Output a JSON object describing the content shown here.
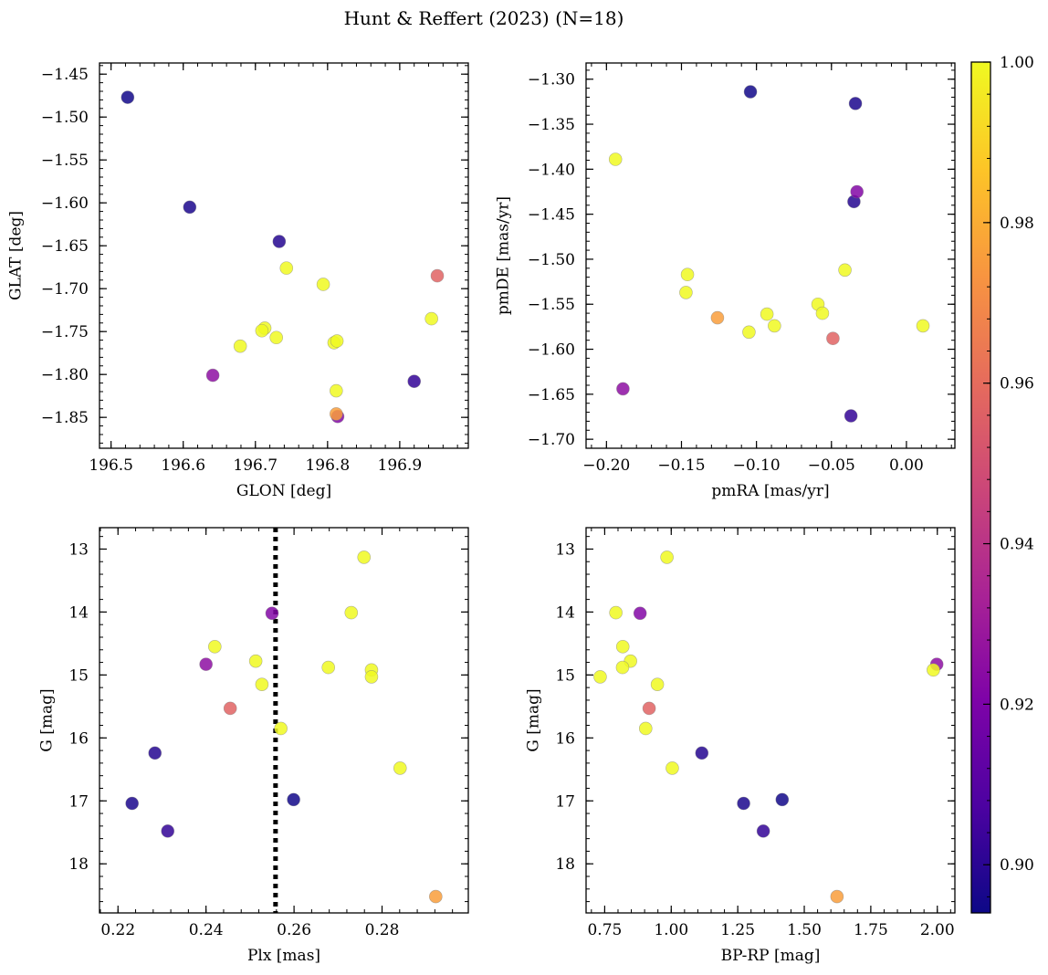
{
  "figure": {
    "title": "Hunt & Reffert (2023) (N=18)"
  },
  "colorbar": {
    "colormap": "plasma",
    "range": [
      0.894,
      1.0
    ],
    "ticks": [
      0.9,
      0.92,
      0.94,
      0.96,
      0.98,
      1.0
    ],
    "tick_labels": [
      "0.90",
      "0.92",
      "0.94",
      "0.96",
      "0.98",
      "1.00"
    ]
  },
  "chart_data": [
    {
      "type": "scatter",
      "xlabel": "GLON [deg]",
      "ylabel": "GLAT [deg]",
      "xlim": [
        196.484,
        196.995
      ],
      "ylim": [
        -1.886,
        -1.437
      ],
      "x_ticks": [
        196.5,
        196.6,
        196.7,
        196.8,
        196.9
      ],
      "x_tick_labels": [
        "196.5",
        "196.6",
        "196.7",
        "196.8",
        "196.9"
      ],
      "y_ticks": [
        -1.85,
        -1.8,
        -1.75,
        -1.7,
        -1.65,
        -1.6,
        -1.55,
        -1.5,
        -1.45
      ],
      "y_tick_labels": [
        "−1.85",
        "−1.80",
        "−1.75",
        "−1.70",
        "−1.65",
        "−1.60",
        "−1.55",
        "−1.50",
        "−1.45"
      ],
      "invert_y": false,
      "points": [
        {
          "x": 196.523,
          "y": -1.477,
          "c": 0.895
        },
        {
          "x": 196.609,
          "y": -1.605,
          "c": 0.897
        },
        {
          "x": 196.733,
          "y": -1.645,
          "c": 0.899
        },
        {
          "x": 196.743,
          "y": -1.676,
          "c": 1.0
        },
        {
          "x": 196.794,
          "y": -1.695,
          "c": 1.0
        },
        {
          "x": 196.952,
          "y": -1.685,
          "c": 0.957
        },
        {
          "x": 196.944,
          "y": -1.735,
          "c": 1.0
        },
        {
          "x": 196.713,
          "y": -1.746,
          "c": 1.0
        },
        {
          "x": 196.709,
          "y": -1.749,
          "c": 1.0
        },
        {
          "x": 196.729,
          "y": -1.757,
          "c": 1.0
        },
        {
          "x": 196.679,
          "y": -1.767,
          "c": 1.0
        },
        {
          "x": 196.809,
          "y": -1.763,
          "c": 1.0
        },
        {
          "x": 196.813,
          "y": -1.761,
          "c": 1.0
        },
        {
          "x": 196.641,
          "y": -1.801,
          "c": 0.925
        },
        {
          "x": 196.92,
          "y": -1.808,
          "c": 0.902
        },
        {
          "x": 196.812,
          "y": -1.819,
          "c": 1.0
        },
        {
          "x": 196.814,
          "y": -1.849,
          "c": 0.922
        },
        {
          "x": 196.812,
          "y": -1.846,
          "c": 0.976
        }
      ]
    },
    {
      "type": "scatter",
      "xlabel": "pmRA [mas/yr]",
      "ylabel": "pmDE [mas/yr]",
      "xlim": [
        -0.2136,
        0.0323
      ],
      "ylim": [
        -1.71,
        -1.282
      ],
      "x_ticks": [
        -0.2,
        -0.15,
        -0.1,
        -0.05,
        0.0
      ],
      "x_tick_labels": [
        "−0.20",
        "−0.15",
        "−0.10",
        "−0.05",
        "0.00"
      ],
      "y_ticks": [
        -1.7,
        -1.65,
        -1.6,
        -1.55,
        -1.5,
        -1.45,
        -1.4,
        -1.35,
        -1.3
      ],
      "y_tick_labels": [
        "−1.70",
        "−1.65",
        "−1.60",
        "−1.55",
        "−1.50",
        "−1.45",
        "−1.40",
        "−1.35",
        "−1.30"
      ],
      "invert_y": false,
      "points": [
        {
          "x": -0.104,
          "y": -1.314,
          "c": 0.895
        },
        {
          "x": -0.034,
          "y": -1.327,
          "c": 0.897
        },
        {
          "x": -0.194,
          "y": -1.389,
          "c": 1.0
        },
        {
          "x": -0.033,
          "y": -1.425,
          "c": 0.922
        },
        {
          "x": -0.035,
          "y": -1.436,
          "c": 0.899
        },
        {
          "x": -0.146,
          "y": -1.517,
          "c": 1.0
        },
        {
          "x": -0.147,
          "y": -1.537,
          "c": 1.0
        },
        {
          "x": -0.041,
          "y": -1.512,
          "c": 1.0
        },
        {
          "x": -0.059,
          "y": -1.55,
          "c": 1.0
        },
        {
          "x": -0.056,
          "y": -1.56,
          "c": 1.0
        },
        {
          "x": -0.093,
          "y": -1.561,
          "c": 1.0
        },
        {
          "x": -0.088,
          "y": -1.574,
          "c": 1.0
        },
        {
          "x": -0.126,
          "y": -1.565,
          "c": 0.976
        },
        {
          "x": -0.105,
          "y": -1.581,
          "c": 1.0
        },
        {
          "x": 0.011,
          "y": -1.574,
          "c": 1.0
        },
        {
          "x": -0.049,
          "y": -1.588,
          "c": 0.957
        },
        {
          "x": -0.189,
          "y": -1.644,
          "c": 0.925
        },
        {
          "x": -0.037,
          "y": -1.674,
          "c": 0.902
        }
      ]
    },
    {
      "type": "scatter",
      "xlabel": "Plx [mas]",
      "ylabel": "G [mag]",
      "xlim": [
        0.2158,
        0.2996
      ],
      "ylim": [
        18.78,
        12.66
      ],
      "x_ticks": [
        0.22,
        0.24,
        0.26,
        0.28
      ],
      "x_tick_labels": [
        "0.22",
        "0.24",
        "0.26",
        "0.28"
      ],
      "y_ticks": [
        13,
        14,
        15,
        16,
        17,
        18
      ],
      "y_tick_labels": [
        "13",
        "14",
        "15",
        "16",
        "17",
        "18"
      ],
      "invert_y": true,
      "vline": {
        "x": 0.2558,
        "style": "dotted"
      },
      "points": [
        {
          "x": 0.2759,
          "y": 13.13,
          "c": 1.0
        },
        {
          "x": 0.273,
          "y": 14.01,
          "c": 1.0
        },
        {
          "x": 0.255,
          "y": 14.02,
          "c": 0.922
        },
        {
          "x": 0.242,
          "y": 14.55,
          "c": 1.0
        },
        {
          "x": 0.2513,
          "y": 14.78,
          "c": 1.0
        },
        {
          "x": 0.24,
          "y": 14.83,
          "c": 0.925
        },
        {
          "x": 0.2678,
          "y": 14.88,
          "c": 1.0
        },
        {
          "x": 0.2776,
          "y": 14.92,
          "c": 1.0
        },
        {
          "x": 0.2776,
          "y": 15.03,
          "c": 1.0
        },
        {
          "x": 0.2527,
          "y": 15.15,
          "c": 1.0
        },
        {
          "x": 0.2455,
          "y": 15.53,
          "c": 0.957
        },
        {
          "x": 0.257,
          "y": 15.85,
          "c": 1.0
        },
        {
          "x": 0.2284,
          "y": 16.24,
          "c": 0.899
        },
        {
          "x": 0.2841,
          "y": 16.48,
          "c": 1.0
        },
        {
          "x": 0.2599,
          "y": 16.98,
          "c": 0.895
        },
        {
          "x": 0.2232,
          "y": 17.04,
          "c": 0.897
        },
        {
          "x": 0.2313,
          "y": 17.48,
          "c": 0.902
        },
        {
          "x": 0.2922,
          "y": 18.52,
          "c": 0.976
        }
      ]
    },
    {
      "type": "scatter",
      "xlabel": "BP-RP [mag]",
      "ylabel": "G [mag]",
      "xlim": [
        0.68,
        2.066
      ],
      "ylim": [
        18.78,
        12.66
      ],
      "x_ticks": [
        0.75,
        1.0,
        1.25,
        1.5,
        1.75,
        2.0
      ],
      "x_tick_labels": [
        "0.75",
        "1.00",
        "1.25",
        "1.50",
        "1.75",
        "2.00"
      ],
      "y_ticks": [
        13,
        14,
        15,
        16,
        17,
        18
      ],
      "y_tick_labels": [
        "13",
        "14",
        "15",
        "16",
        "17",
        "18"
      ],
      "invert_y": true,
      "points": [
        {
          "x": 0.984,
          "y": 13.13,
          "c": 1.0
        },
        {
          "x": 0.792,
          "y": 14.01,
          "c": 1.0
        },
        {
          "x": 0.883,
          "y": 14.02,
          "c": 0.922
        },
        {
          "x": 0.818,
          "y": 14.55,
          "c": 1.0
        },
        {
          "x": 0.847,
          "y": 14.78,
          "c": 1.0
        },
        {
          "x": 1.998,
          "y": 14.83,
          "c": 0.925
        },
        {
          "x": 0.817,
          "y": 14.88,
          "c": 1.0
        },
        {
          "x": 1.985,
          "y": 14.92,
          "c": 1.0
        },
        {
          "x": 0.733,
          "y": 15.03,
          "c": 1.0
        },
        {
          "x": 0.948,
          "y": 15.15,
          "c": 1.0
        },
        {
          "x": 0.917,
          "y": 15.53,
          "c": 0.957
        },
        {
          "x": 0.904,
          "y": 15.85,
          "c": 1.0
        },
        {
          "x": 1.115,
          "y": 16.24,
          "c": 0.899
        },
        {
          "x": 1.004,
          "y": 16.48,
          "c": 1.0
        },
        {
          "x": 1.417,
          "y": 16.98,
          "c": 0.895
        },
        {
          "x": 1.272,
          "y": 17.04,
          "c": 0.897
        },
        {
          "x": 1.346,
          "y": 17.48,
          "c": 0.902
        },
        {
          "x": 1.623,
          "y": 18.52,
          "c": 0.976
        }
      ]
    }
  ]
}
